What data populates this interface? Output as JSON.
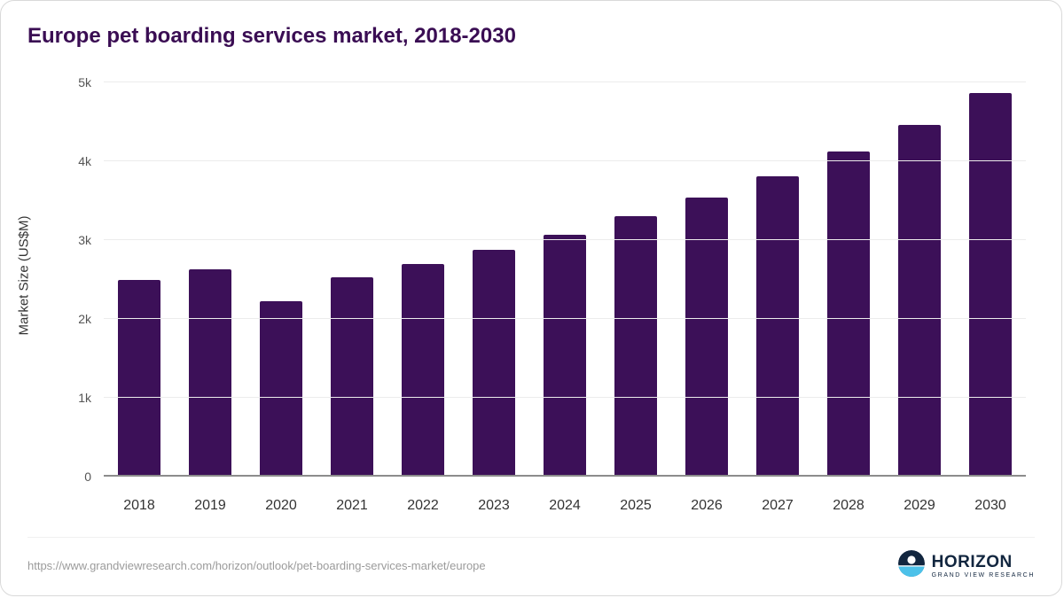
{
  "title": "Europe pet boarding services market, 2018-2030",
  "chart_data": {
    "type": "bar",
    "categories": [
      "2018",
      "2019",
      "2020",
      "2021",
      "2022",
      "2023",
      "2024",
      "2025",
      "2026",
      "2027",
      "2028",
      "2029",
      "2030"
    ],
    "values": [
      2500,
      2630,
      2220,
      2530,
      2700,
      2880,
      3070,
      3300,
      3540,
      3810,
      4120,
      4460,
      4860
    ],
    "title": "Europe pet boarding services market, 2018-2030",
    "xlabel": "",
    "ylabel": "Market Size (US$M)",
    "ylim": [
      0,
      5000
    ],
    "yticks": [
      0,
      1000,
      2000,
      3000,
      4000,
      5000
    ],
    "ytick_labels": [
      "0",
      "1k",
      "2k",
      "3k",
      "4k",
      "5k"
    ],
    "grid": true,
    "legend_position": "none",
    "bar_color": "#3c1058"
  },
  "colors": {
    "title": "#3a0d53",
    "bar": "#3c1058",
    "gridline": "#ececec",
    "baseline": "#8c8c8c",
    "axis_text": "#555555",
    "logo_navy": "#12263f",
    "logo_blue": "#4cc1e9"
  },
  "footer": {
    "source_url": "https://www.grandviewresearch.com/horizon/outlook/pet-boarding-services-market/europe",
    "logo_text": "HORIZON",
    "logo_subtext": "GRAND VIEW RESEARCH"
  }
}
